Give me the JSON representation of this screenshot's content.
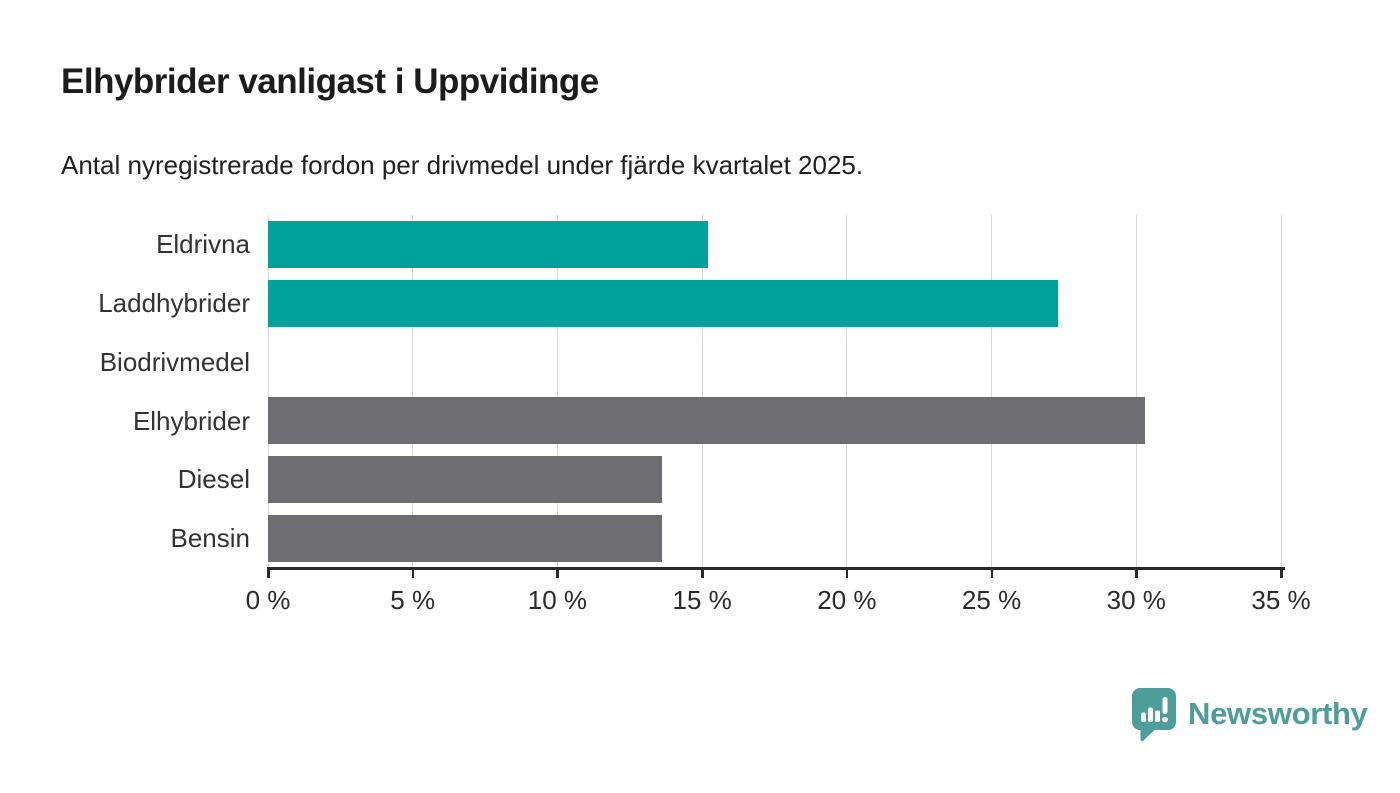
{
  "header": {
    "title": "Elhybrider vanligast i Uppvidinge",
    "subtitle": "Antal nyregistrerade fordon per drivmedel under fjärde kvartalet 2025."
  },
  "chart_data": {
    "type": "bar",
    "orientation": "horizontal",
    "title": "Elhybrider vanligast i Uppvidinge",
    "subtitle": "Antal nyregistrerade fordon per drivmedel under fjärde kvartalet 2025.",
    "categories": [
      "Eldrivna",
      "Laddhybrider",
      "Biodrivmedel",
      "Elhybrider",
      "Diesel",
      "Bensin"
    ],
    "values": [
      15.2,
      27.3,
      0,
      30.3,
      13.6,
      13.6
    ],
    "unit": "%",
    "bar_colors": [
      "#00a19a",
      "#00a19a",
      "#00a19a",
      "#6e6d72",
      "#6e6d72",
      "#6e6d72"
    ],
    "xlim": [
      0,
      35
    ],
    "x_ticks": [
      0,
      5,
      10,
      15,
      20,
      25,
      30,
      35
    ],
    "x_tick_labels": [
      "0 %",
      "5 %",
      "10 %",
      "15 %",
      "20 %",
      "25 %",
      "30 %",
      "35 %"
    ],
    "xlabel": "",
    "ylabel": "",
    "grid": true,
    "legend": false
  },
  "colors": {
    "background": "#ffffff",
    "bar_highlight": "#00a19a",
    "bar_default": "#6e6d72",
    "axis": "#2b2b2b",
    "gridline": "#dadada",
    "title_text": "#1c1c1c",
    "label_text": "#333333",
    "brand": "#4d9e9a"
  },
  "footer": {
    "brand": "Newsworthy"
  }
}
